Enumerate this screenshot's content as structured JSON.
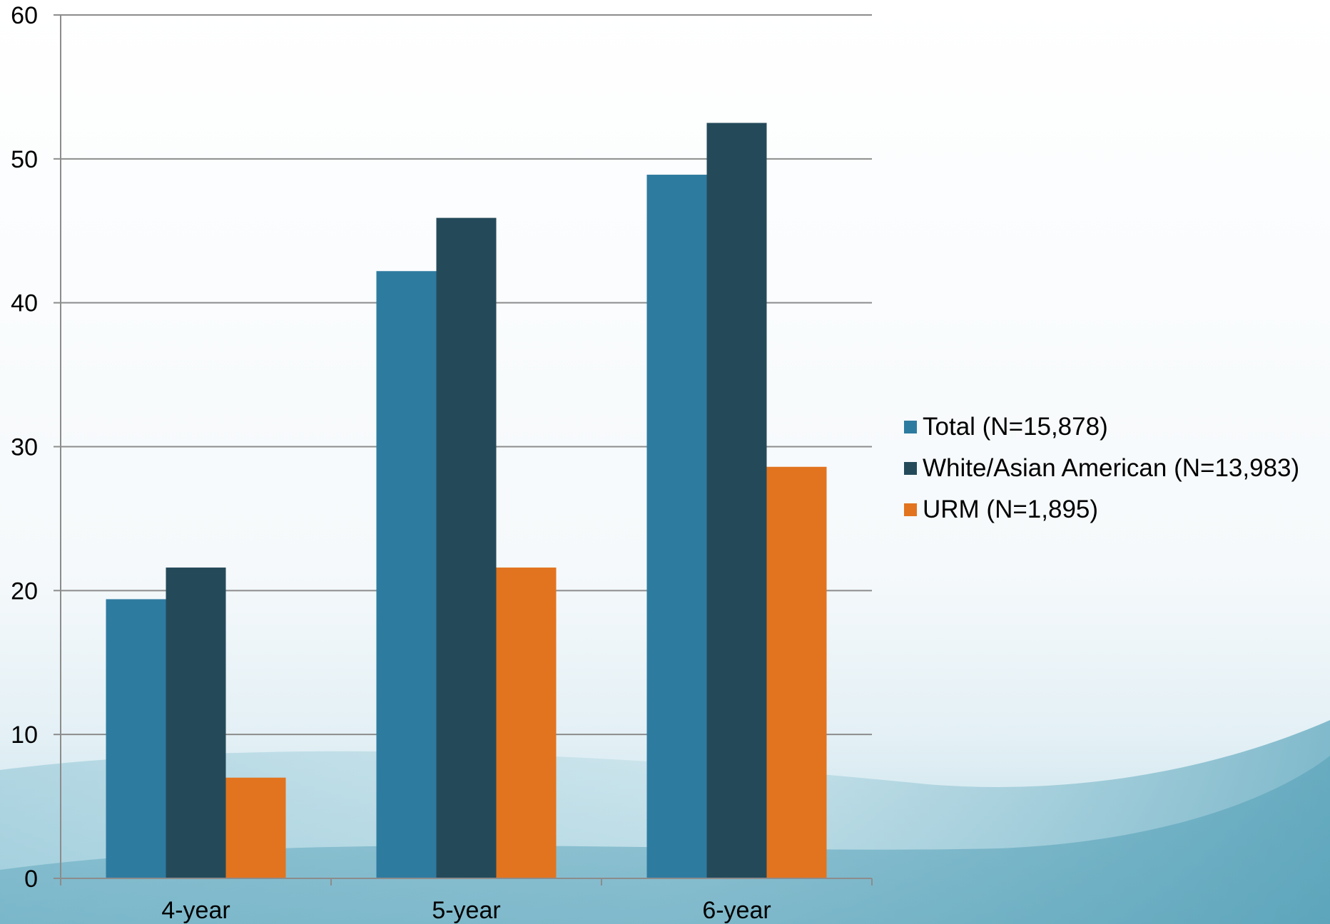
{
  "chart_data": {
    "type": "bar",
    "categories": [
      "4-year",
      "5-year",
      "6-year"
    ],
    "series": [
      {
        "name": "Total (N=15,878)",
        "color": "#2e7ba0",
        "values": [
          19.4,
          42.2,
          48.9
        ]
      },
      {
        "name": "White/Asian American (N=13,983)",
        "color": "#244a5a",
        "values": [
          21.6,
          45.9,
          52.5
        ]
      },
      {
        "name": "URM (N=1,895)",
        "color": "#e2741f",
        "values": [
          7.0,
          21.6,
          28.6
        ]
      }
    ],
    "ylim": [
      0,
      60
    ],
    "yticks": [
      "0",
      "10",
      "20",
      "30",
      "40",
      "50",
      "60"
    ],
    "grid": true,
    "legend_position": "right",
    "title": "",
    "xlabel": "",
    "ylabel": ""
  }
}
